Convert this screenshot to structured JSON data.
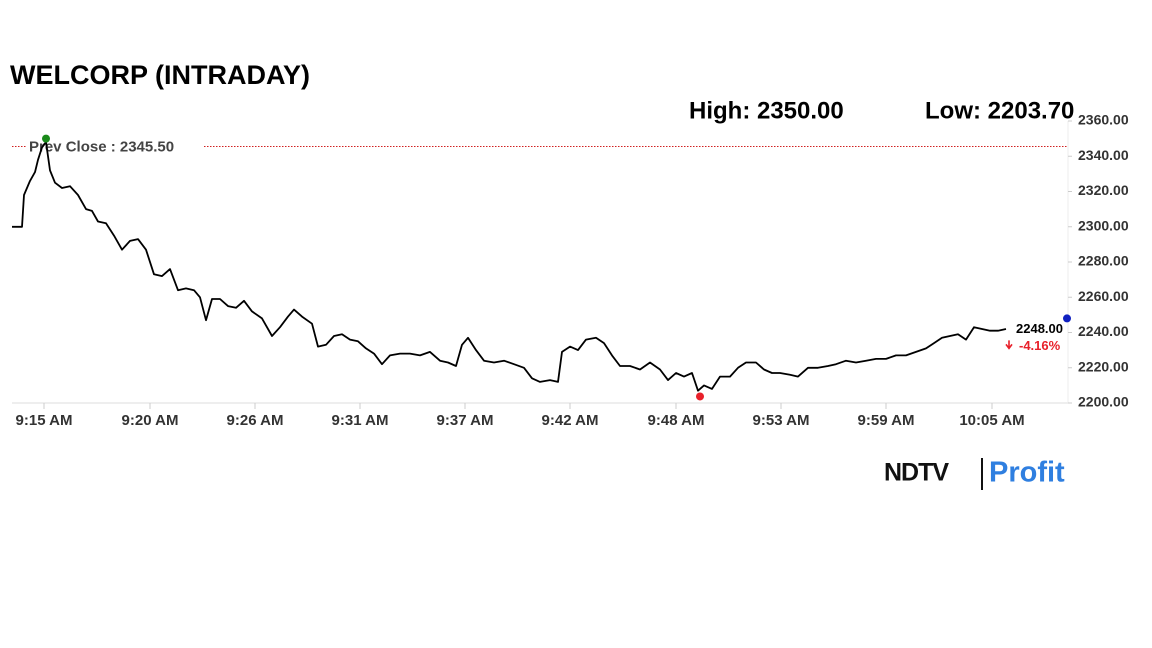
{
  "chart_data": {
    "type": "line",
    "title": "WELCORP (INTRADAY)",
    "high": {
      "text": "High: 2350.00",
      "value": 2350,
      "x": 3.4,
      "color": "#1a8a1a"
    },
    "low": {
      "text": "Low: 2203.70",
      "value": 2203.7,
      "x": 68.8,
      "color": "#e8202a"
    },
    "prev_close": {
      "text": "Prev Close : 2345.50",
      "value": 2345.5,
      "color": "#d02020"
    },
    "last": {
      "text": "2248.00",
      "value": 2248,
      "x": 105.5,
      "color": "#1020c0"
    },
    "change": {
      "text": "-4.16%",
      "value": -4.16,
      "color": "#e8202a"
    },
    "logo": {
      "brand": "NDTV",
      "product": "Profit"
    },
    "xlim": [
      0,
      105.6
    ],
    "xticks": [
      {
        "value": 3.2,
        "label": "9:15 AM"
      },
      {
        "value": 13.8,
        "label": "9:20 AM"
      },
      {
        "value": 24.3,
        "label": "9:26 AM"
      },
      {
        "value": 34.8,
        "label": "9:31 AM"
      },
      {
        "value": 45.3,
        "label": "9:37 AM"
      },
      {
        "value": 55.8,
        "label": "9:42 AM"
      },
      {
        "value": 66.4,
        "label": "9:48 AM"
      },
      {
        "value": 76.9,
        "label": "9:53 AM"
      },
      {
        "value": 87.4,
        "label": "9:59 AM"
      },
      {
        "value": 98.0,
        "label": "10:05 AM"
      }
    ],
    "ylim": [
      2200,
      2360
    ],
    "yticks": [
      {
        "value": 2200,
        "label": "2200.00"
      },
      {
        "value": 2220,
        "label": "2220.00"
      },
      {
        "value": 2240,
        "label": "2240.00"
      },
      {
        "value": 2260,
        "label": "2260.00"
      },
      {
        "value": 2280,
        "label": "2280.00"
      },
      {
        "value": 2300,
        "label": "2300.00"
      },
      {
        "value": 2320,
        "label": "2320.00"
      },
      {
        "value": 2340,
        "label": "2340.00"
      },
      {
        "value": 2360,
        "label": "2360.00"
      }
    ],
    "x": [
      0,
      1,
      1.2,
      1.8,
      2.3,
      2.6,
      3.0,
      3.4,
      3.8,
      4.3,
      5.0,
      5.8,
      6.6,
      7.4,
      8.0,
      8.6,
      9.4,
      10.2,
      11.0,
      11.8,
      12.6,
      13.4,
      14.2,
      15.0,
      15.8,
      16.6,
      17.4,
      18.2,
      18.8,
      19.4,
      20.0,
      20.8,
      21.6,
      22.4,
      23.2,
      24.0,
      25.0,
      26.0,
      26.8,
      27.6,
      28.2,
      29.0,
      30.0,
      30.6,
      31.4,
      32.2,
      33.0,
      33.8,
      34.6,
      35.4,
      36.2,
      37.0,
      37.8,
      38.8,
      39.8,
      40.8,
      41.8,
      42.8,
      43.6,
      44.4,
      45.0,
      45.6,
      46.4,
      47.2,
      48.2,
      49.2,
      50.2,
      51.2,
      52.0,
      52.8,
      53.8,
      54.6,
      55.0,
      55.8,
      56.6,
      57.4,
      58.4,
      59.2,
      60.0,
      60.8,
      61.8,
      62.8,
      63.8,
      64.8,
      65.6,
      66.4,
      67.2,
      68.0,
      68.6,
      69.2,
      70.0,
      70.8,
      71.8,
      72.6,
      73.4,
      74.4,
      75.2,
      76.0,
      76.8,
      77.8,
      78.6,
      79.6,
      80.6,
      81.6,
      82.4,
      83.4,
      84.4,
      85.4,
      86.4,
      87.4,
      88.4,
      89.4,
      90.4,
      91.4,
      92.2,
      93.0,
      93.8,
      94.6,
      95.4,
      96.2,
      97.0,
      97.8,
      98.6,
      99.4
    ],
    "series": [
      {
        "name": "WELCORP",
        "color": "#000000",
        "values": [
          2300,
          2300,
          2318,
          2326,
          2331,
          2338,
          2345,
          2348,
          2332,
          2325,
          2322,
          2323,
          2318,
          2310,
          2309,
          2303,
          2302,
          2295,
          2287,
          2292,
          2293,
          2287,
          2273,
          2272,
          2276,
          2264,
          2265,
          2264,
          2260,
          2247,
          2259,
          2259,
          2255,
          2254,
          2258,
          2252,
          2248,
          2238,
          2243,
          2249,
          2253,
          2249,
          2245,
          2232,
          2233,
          2238,
          2239,
          2236,
          2235,
          2231,
          2228,
          2222,
          2227,
          2228,
          2228,
          2227,
          2229,
          2224,
          2223,
          2221,
          2233,
          2237,
          2230,
          2224,
          2223,
          2224,
          2222,
          2220,
          2214,
          2212,
          2213,
          2212,
          2229,
          2232,
          2230,
          2236,
          2237,
          2234,
          2227,
          2221,
          2221,
          2219,
          2223,
          2219,
          2213,
          2217,
          2215,
          2217,
          2207,
          2210,
          2208,
          2215,
          2215,
          2220,
          2223,
          2223,
          2219,
          2217,
          2217,
          2216,
          2215,
          2220,
          2220,
          2221,
          2222,
          2224,
          2223,
          2224,
          2225,
          2225,
          2227,
          2227,
          2229,
          2231,
          2234,
          2237,
          2238,
          2239,
          2236,
          2243,
          2242,
          2241,
          2241,
          2242
        ]
      }
    ]
  }
}
